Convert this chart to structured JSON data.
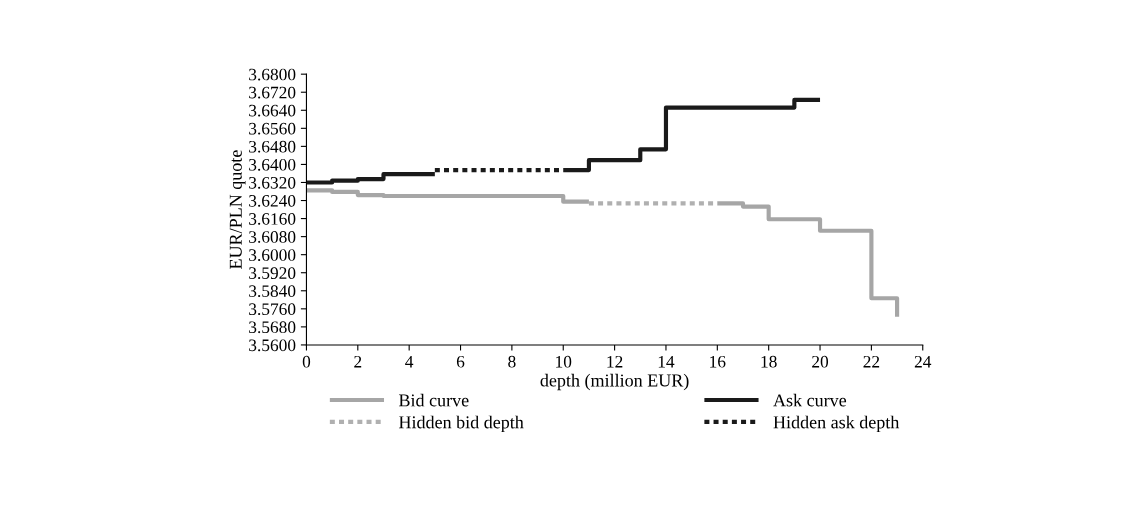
{
  "chart_data": {
    "type": "step",
    "xlabel": "depth (million EUR)",
    "ylabel": "EUR/PLN quote",
    "xlim": [
      0,
      24
    ],
    "xticks": [
      0,
      2,
      4,
      6,
      8,
      10,
      12,
      14,
      16,
      18,
      20,
      22,
      24
    ],
    "ylim": [
      3.56,
      3.68
    ],
    "yticks": [
      {
        "value": 3.56,
        "label": "3.5600"
      },
      {
        "value": 3.568,
        "label": "3.5680"
      },
      {
        "value": 3.576,
        "label": "3.5760"
      },
      {
        "value": 3.584,
        "label": "3.5840"
      },
      {
        "value": 3.592,
        "label": "3.5920"
      },
      {
        "value": 3.6,
        "label": "3.6000"
      },
      {
        "value": 3.608,
        "label": "3.6080"
      },
      {
        "value": 3.616,
        "label": "3.6160"
      },
      {
        "value": 3.624,
        "label": "3.6240"
      },
      {
        "value": 3.632,
        "label": "3.6320"
      },
      {
        "value": 3.64,
        "label": "3.6400"
      },
      {
        "value": 3.648,
        "label": "3.6480"
      },
      {
        "value": 3.656,
        "label": "3.6560"
      },
      {
        "value": 3.664,
        "label": "3.6640"
      },
      {
        "value": 3.672,
        "label": "3.6720"
      },
      {
        "value": 3.68,
        "label": "3.6800"
      }
    ],
    "grid": false,
    "legend": "bottom",
    "series": [
      {
        "name": "Bid curve",
        "color": "#a6a6a6",
        "line_style": "solid",
        "x": [
          0,
          1,
          2,
          3,
          10,
          11,
          16,
          17,
          18,
          20,
          22,
          23
        ],
        "values": [
          3.6285,
          3.6278,
          3.6264,
          3.626,
          3.6235,
          null,
          3.6227,
          3.6213,
          3.6157,
          3.6106,
          3.5807,
          3.5725
        ]
      },
      {
        "name": "Ask curve",
        "color": "#1a1a1a",
        "line_style": "solid",
        "x": [
          0,
          1,
          2,
          3,
          5,
          10,
          11,
          13,
          14,
          19,
          20
        ],
        "values": [
          3.632,
          3.6328,
          3.6335,
          3.6357,
          null,
          3.6375,
          3.6419,
          3.6467,
          3.6652,
          3.6686,
          3.6686
        ]
      },
      {
        "name": "Hidden bid depth",
        "type": "line",
        "color": "#b0b0b0",
        "line_style": "dotted",
        "x": [
          11,
          16
        ],
        "values": [
          3.6227,
          3.6227
        ]
      },
      {
        "name": "Hidden ask depth",
        "type": "line",
        "color": "#1a1a1a",
        "line_style": "dotted",
        "x": [
          5,
          10
        ],
        "values": [
          3.6375,
          3.6375
        ]
      }
    ]
  }
}
